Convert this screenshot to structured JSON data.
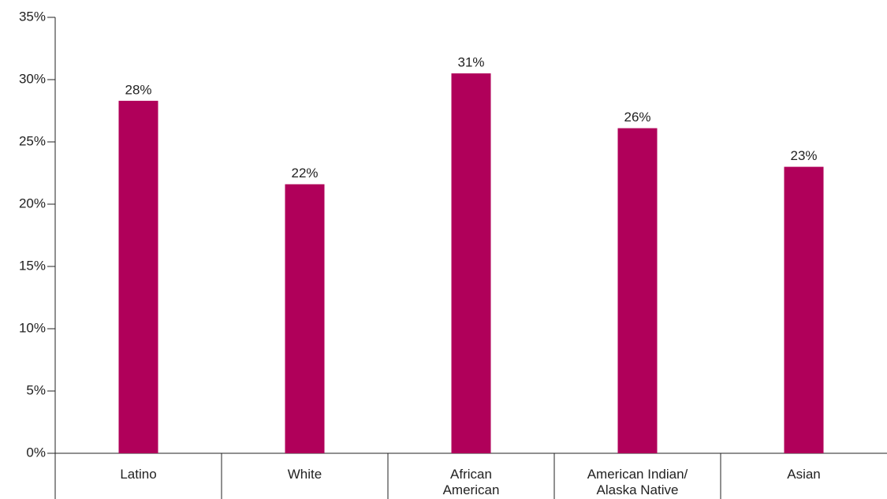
{
  "chart_data": {
    "type": "bar",
    "categories": [
      "Latino",
      "White",
      "African\nAmerican",
      "American Indian/\nAlaska Native",
      "Asian"
    ],
    "values": [
      28.3,
      21.6,
      30.5,
      26.1,
      23.0
    ],
    "value_labels": [
      "28%",
      "22%",
      "31%",
      "26%",
      "23%"
    ],
    "color": "#b0005a",
    "ylim": [
      0,
      35
    ],
    "yticks": [
      {
        "value": 0,
        "label": "0%"
      },
      {
        "value": 5,
        "label": "5%"
      },
      {
        "value": 10,
        "label": "10%"
      },
      {
        "value": 15,
        "label": "15%"
      },
      {
        "value": 20,
        "label": "20%"
      },
      {
        "value": 25,
        "label": "25%"
      },
      {
        "value": 30,
        "label": "30%"
      },
      {
        "value": 35,
        "label": "35%"
      }
    ]
  }
}
